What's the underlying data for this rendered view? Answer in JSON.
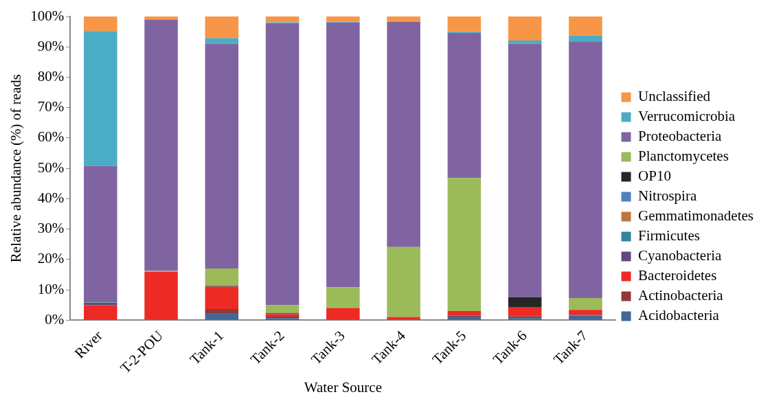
{
  "chart_data": {
    "type": "bar",
    "stacked": true,
    "xlabel": "Water Source",
    "ylabel": "Relative abundance (%) of reads",
    "categories": [
      "River",
      "T-2-POU",
      "Tank-1",
      "Tank-2",
      "Tank-3",
      "Tank-4",
      "Tank-5",
      "Tank-6",
      "Tank-7"
    ],
    "ylim": [
      0,
      100
    ],
    "yticks": [
      {
        "value": 0,
        "label": "0%"
      },
      {
        "value": 10,
        "label": "10%"
      },
      {
        "value": 20,
        "label": "20%"
      },
      {
        "value": 30,
        "label": "30%"
      },
      {
        "value": 40,
        "label": "40%"
      },
      {
        "value": 50,
        "label": "50%"
      },
      {
        "value": 60,
        "label": "60%"
      },
      {
        "value": 70,
        "label": "70%"
      },
      {
        "value": 80,
        "label": "80%"
      },
      {
        "value": 90,
        "label": "90%"
      },
      {
        "value": 100,
        "label": "100%"
      }
    ],
    "grid": false,
    "legend": "right",
    "series": [
      {
        "name": "Acidobacteria",
        "color": "#416897",
        "values": [
          0,
          0,
          2.3,
          0.7,
          0,
          0,
          1.2,
          0.7,
          1.5
        ]
      },
      {
        "name": "Actinobacteria",
        "color": "#953735",
        "values": [
          0.2,
          0,
          1.4,
          0.5,
          0,
          0,
          0.3,
          0.6,
          0.3
        ]
      },
      {
        "name": "Bacteroidetes",
        "color": "#ee2a24",
        "values": [
          4.7,
          15.9,
          7.4,
          0.8,
          4,
          1,
          1.5,
          2.9,
          1.6
        ]
      },
      {
        "name": "Cyanobacteria",
        "color": "#604a7b",
        "values": [
          0.8,
          0,
          0,
          0.4,
          0,
          0,
          0,
          0,
          0
        ]
      },
      {
        "name": "Firmicutes",
        "color": "#31859c",
        "values": [
          0.1,
          0,
          0.3,
          0,
          0,
          0,
          0,
          0,
          0
        ]
      },
      {
        "name": "Gemmatimonadetes",
        "color": "#c0763f",
        "values": [
          0,
          0,
          0,
          0,
          0,
          0,
          0,
          0,
          0
        ]
      },
      {
        "name": "Nitrospira",
        "color": "#4f81bd",
        "values": [
          0,
          0,
          0,
          0,
          0,
          0,
          0,
          0,
          0
        ]
      },
      {
        "name": "OP10",
        "color": "#262626",
        "values": [
          0,
          0,
          0,
          0,
          0,
          0,
          0,
          3.4,
          0
        ]
      },
      {
        "name": "Planctomycetes",
        "color": "#9bbb59",
        "values": [
          0.1,
          0.3,
          5.6,
          2.5,
          6.8,
          23.1,
          43.8,
          0,
          3.9
        ]
      },
      {
        "name": "Proteobacteria",
        "color": "#8064a2",
        "values": [
          44.9,
          82.8,
          74,
          92.9,
          87.2,
          74.1,
          47.8,
          83.4,
          84.5
        ]
      },
      {
        "name": "Verrucomicrobia",
        "color": "#4bacc6",
        "values": [
          44.4,
          0,
          1.8,
          0.3,
          0.3,
          0,
          0.3,
          1.1,
          2
        ]
      },
      {
        "name": "Unclassified",
        "color": "#f79646",
        "values": [
          4.8,
          1,
          7.2,
          1.9,
          1.7,
          1.8,
          5.1,
          7.9,
          6.2
        ]
      }
    ]
  }
}
